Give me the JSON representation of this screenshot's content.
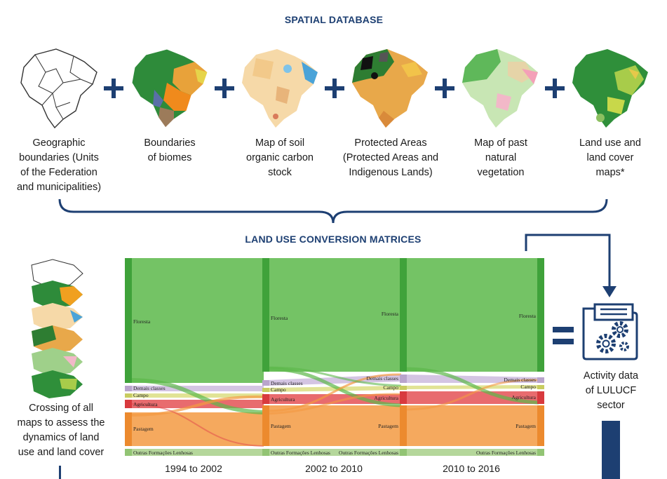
{
  "header_spatial": "SPATIAL DATABASE",
  "header_matrices": "LAND USE CONVERSION MATRICES",
  "inputs": [
    {
      "label": "Geographic\nboundaries (Units\nof the Federation\nand municipalities)",
      "icon": "brazil-outline-map"
    },
    {
      "label": "Boundaries\nof biomes",
      "icon": "brazil-biomes-map"
    },
    {
      "label": "Map of soil\norganic carbon\nstock",
      "icon": "brazil-soil-carbon-map"
    },
    {
      "label": "Protected Areas\n(Protected Areas and\nIndigenous Lands)",
      "icon": "brazil-protected-areas-map"
    },
    {
      "label": "Map of past\nnatural\nvegetation",
      "icon": "brazil-past-vegetation-map"
    },
    {
      "label": "Land use and\nland cover\nmaps*",
      "icon": "brazil-land-cover-map"
    }
  ],
  "crossing_label": "Crossing of all\nmaps to assess the\ndynamics of land\nuse and land cover",
  "output_label": "Activity data\nof LULUCF\nsector",
  "periods": [
    "1994 to 2002",
    "2002 to 2010",
    "2010 to 2016"
  ],
  "classes": [
    "Floresta",
    "Demais classes",
    "Campo",
    "Agricultura",
    "Pastagem",
    "Outras Formações Lenhosas"
  ],
  "colors": {
    "accent": "#1d3f72",
    "floresta": "#5cb84a",
    "demais": "#c9b6dc",
    "campo": "#d9dc7a",
    "agricultura": "#e2464a",
    "pastagem": "#f39a42",
    "outras": "#a8d08a"
  }
}
